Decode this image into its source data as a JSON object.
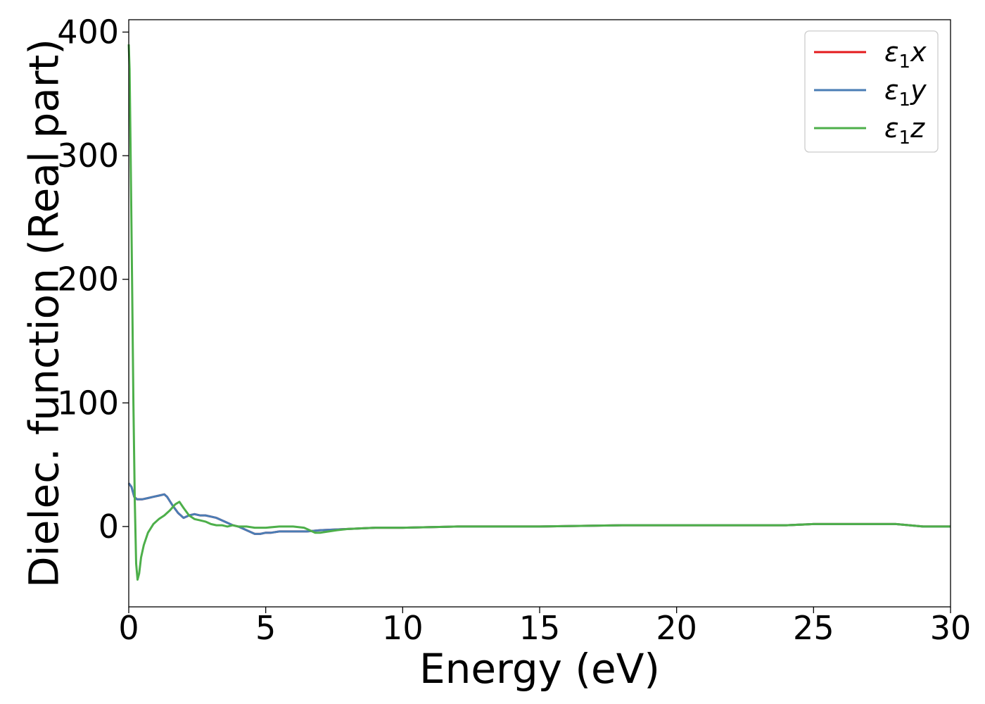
{
  "chart_data": {
    "type": "line",
    "title": "",
    "xlabel": "Energy (eV)",
    "ylabel": "Dielec. function (Real part)",
    "xlim": [
      0,
      30
    ],
    "ylim": [
      -65,
      410
    ],
    "xticks": [
      0,
      5,
      10,
      15,
      20,
      25,
      30
    ],
    "yticks": [
      0,
      100,
      200,
      300,
      400
    ],
    "grid": false,
    "legend_position": "top-right",
    "series": [
      {
        "name": "ε1x",
        "legend": {
          "base": "ε",
          "sub": "1",
          "suffix": "x"
        },
        "color": "#e41a1c",
        "x": [
          0,
          0.1,
          0.2,
          0.3,
          0.5,
          0.7,
          0.9,
          1.1,
          1.3,
          1.4,
          1.6,
          1.8,
          2.0,
          2.2,
          2.4,
          2.6,
          2.8,
          3.0,
          3.2,
          3.4,
          3.6,
          3.8,
          4.0,
          4.2,
          4.4,
          4.6,
          4.8,
          5.0,
          5.2,
          5.5,
          6.0,
          6.5,
          7.0,
          8.0,
          9.0,
          10,
          12,
          15,
          18,
          20,
          22,
          24,
          25,
          26,
          27,
          28,
          28.5,
          29,
          29.3,
          29.6,
          30
        ],
        "y": [
          35,
          32,
          24,
          22,
          22,
          23,
          24,
          25,
          26,
          24,
          17,
          11,
          7,
          9,
          10,
          9,
          9,
          8,
          7,
          5,
          3,
          1,
          0,
          -2,
          -4,
          -6,
          -6,
          -5,
          -5,
          -4,
          -4,
          -4,
          -3,
          -2,
          -1,
          -1,
          0,
          0,
          1,
          1,
          1,
          1,
          2,
          2,
          2,
          2,
          1,
          0,
          0,
          0,
          0
        ]
      },
      {
        "name": "ε1y",
        "legend": {
          "base": "ε",
          "sub": "1",
          "suffix": "y"
        },
        "color": "#4a7db5",
        "x": [
          0,
          0.1,
          0.2,
          0.3,
          0.5,
          0.7,
          0.9,
          1.1,
          1.3,
          1.4,
          1.6,
          1.8,
          2.0,
          2.2,
          2.4,
          2.6,
          2.8,
          3.0,
          3.2,
          3.4,
          3.6,
          3.8,
          4.0,
          4.2,
          4.4,
          4.6,
          4.8,
          5.0,
          5.2,
          5.5,
          6.0,
          6.5,
          7.0,
          8.0,
          9.0,
          10,
          12,
          15,
          18,
          20,
          22,
          24,
          25,
          26,
          27,
          28,
          28.5,
          29,
          29.3,
          29.6,
          30
        ],
        "y": [
          35,
          32,
          24,
          22,
          22,
          23,
          24,
          25,
          26,
          24,
          17,
          11,
          7,
          9,
          10,
          9,
          9,
          8,
          7,
          5,
          3,
          1,
          0,
          -2,
          -4,
          -6,
          -6,
          -5,
          -5,
          -4,
          -4,
          -4,
          -3,
          -2,
          -1,
          -1,
          0,
          0,
          1,
          1,
          1,
          1,
          2,
          2,
          2,
          2,
          1,
          0,
          0,
          0,
          0
        ]
      },
      {
        "name": "ε1z",
        "legend": {
          "base": "ε",
          "sub": "1",
          "suffix": "z"
        },
        "color": "#4daf4a",
        "x": [
          0,
          0.03,
          0.07,
          0.12,
          0.17,
          0.22,
          0.27,
          0.32,
          0.38,
          0.45,
          0.55,
          0.7,
          0.9,
          1.1,
          1.3,
          1.5,
          1.7,
          1.85,
          2.0,
          2.2,
          2.4,
          2.6,
          2.8,
          3.0,
          3.2,
          3.4,
          3.6,
          3.8,
          4.0,
          4.3,
          4.6,
          5.0,
          5.5,
          6.0,
          6.4,
          6.6,
          6.8,
          7.0,
          7.3,
          7.6,
          8.0,
          9.0,
          10,
          12,
          15,
          18,
          20,
          22,
          24,
          25,
          26,
          27,
          28,
          28.5,
          29,
          29.3,
          29.6,
          30
        ],
        "y": [
          390,
          370,
          300,
          200,
          100,
          20,
          -30,
          -43,
          -38,
          -25,
          -15,
          -5,
          2,
          6,
          9,
          13,
          18,
          20,
          15,
          9,
          6,
          5,
          4,
          2,
          1,
          1,
          0,
          1,
          0,
          0,
          -1,
          -1,
          0,
          0,
          -1,
          -3,
          -5,
          -5,
          -4,
          -3,
          -2,
          -1,
          -1,
          0,
          0,
          1,
          1,
          1,
          1,
          2,
          2,
          2,
          2,
          1,
          0,
          0,
          0,
          0
        ]
      }
    ]
  }
}
